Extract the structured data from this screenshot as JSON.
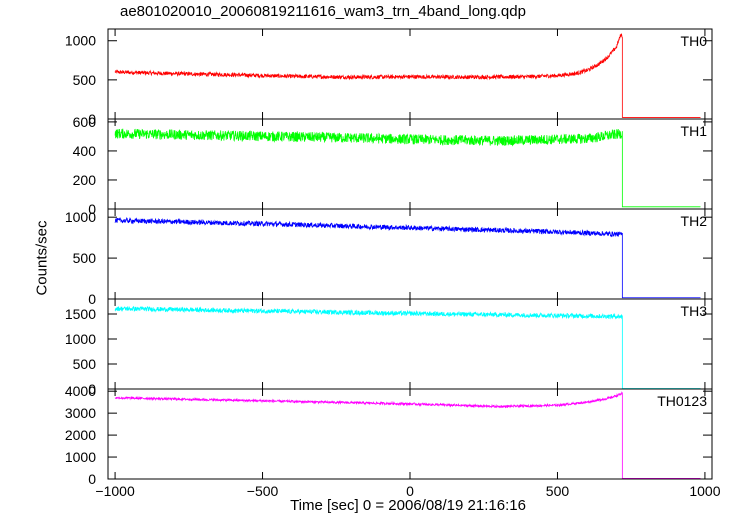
{
  "chart_data": {
    "type": "line",
    "title": "ae801020010_20060819211616_wam3_trn_4band_long.qdp",
    "xlabel": "Time [sec] 0 = 2006/08/19 21:16:16",
    "ylabel": "Counts/sec",
    "xlim": [
      -1024,
      1024
    ],
    "xticks": [
      -1000,
      -500,
      0,
      500,
      1000
    ],
    "xtick_labels": [
      "−1000",
      "−500",
      "0",
      "500",
      "1000"
    ],
    "x_drop": 720,
    "panels": [
      {
        "name": "TH0",
        "color": "#ff0000",
        "ylim": [
          0,
          1150
        ],
        "yticks": [
          0,
          500,
          1000
        ],
        "ytick_labels": [
          "0",
          "500",
          "1000"
        ],
        "x": [
          -1000,
          -800,
          -600,
          -400,
          -200,
          0,
          200,
          400,
          500,
          560,
          600,
          640,
          670,
          700,
          715,
          720
        ],
        "y": [
          600,
          580,
          565,
          545,
          535,
          540,
          535,
          540,
          555,
          580,
          620,
          700,
          790,
          920,
          1080,
          1060
        ],
        "after": 20,
        "noise": 25
      },
      {
        "name": "TH1",
        "color": "#00ff00",
        "ylim": [
          0,
          620
        ],
        "yticks": [
          0,
          200,
          400,
          600
        ],
        "ytick_labels": [
          "0",
          "200",
          "400",
          "600"
        ],
        "x": [
          -1000,
          -600,
          -200,
          0,
          300,
          600,
          720
        ],
        "y": [
          520,
          505,
          490,
          480,
          470,
          485,
          520
        ],
        "after": 15,
        "noise": 35
      },
      {
        "name": "TH2",
        "color": "#0000ff",
        "ylim": [
          0,
          1100
        ],
        "yticks": [
          0,
          500,
          1000
        ],
        "ytick_labels": [
          "0",
          "500",
          "1000"
        ],
        "x": [
          -1000,
          -500,
          0,
          500,
          720
        ],
        "y": [
          960,
          920,
          870,
          820,
          790
        ],
        "after": 15,
        "noise": 30
      },
      {
        "name": "TH3",
        "color": "#00ffff",
        "ylim": [
          0,
          1800
        ],
        "yticks": [
          0,
          500,
          1000,
          1500
        ],
        "ytick_labels": [
          "0",
          "500",
          "1000",
          "1500"
        ],
        "x": [
          -1000,
          -500,
          0,
          500,
          720
        ],
        "y": [
          1610,
          1560,
          1510,
          1470,
          1450
        ],
        "after": 10,
        "noise": 45
      },
      {
        "name": "TH0123",
        "color": "#ff00ff",
        "ylim": [
          0,
          4100
        ],
        "yticks": [
          0,
          1000,
          2000,
          3000,
          4000
        ],
        "ytick_labels": [
          "0",
          "1000",
          "2000",
          "3000",
          "4000"
        ],
        "x": [
          -1000,
          -500,
          0,
          300,
          500,
          600,
          680,
          720
        ],
        "y": [
          3700,
          3560,
          3420,
          3300,
          3360,
          3500,
          3700,
          3900
        ],
        "after": 30,
        "noise": 50
      }
    ],
    "grid": false,
    "legend": "panel labels top-right"
  }
}
